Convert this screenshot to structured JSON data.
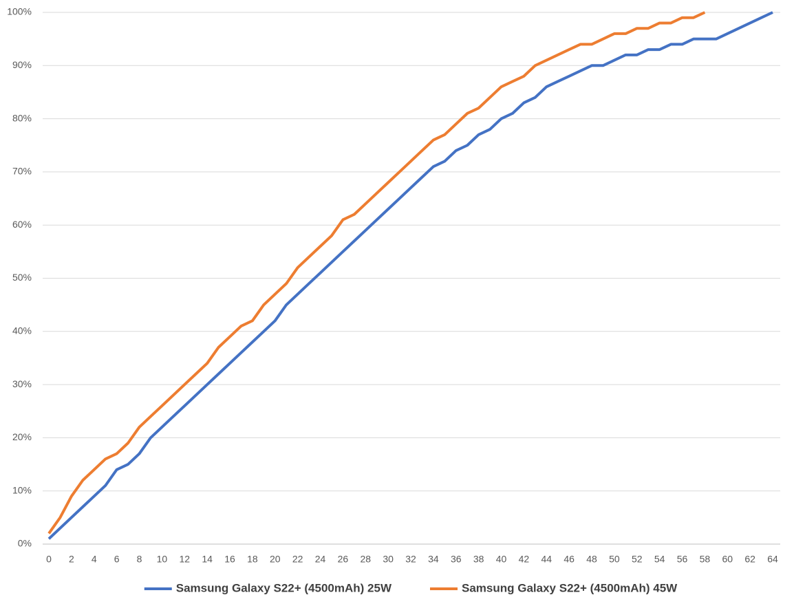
{
  "chart_data": {
    "type": "line",
    "x": [
      0,
      1,
      2,
      3,
      4,
      5,
      6,
      7,
      8,
      9,
      10,
      11,
      12,
      13,
      14,
      15,
      16,
      17,
      18,
      19,
      20,
      21,
      22,
      23,
      24,
      25,
      26,
      27,
      28,
      29,
      30,
      31,
      32,
      33,
      34,
      35,
      36,
      37,
      38,
      39,
      40,
      41,
      42,
      43,
      44,
      45,
      46,
      47,
      48,
      49,
      50,
      51,
      52,
      53,
      54,
      55,
      56,
      57,
      58,
      59,
      60,
      61,
      62,
      63,
      64
    ],
    "series": [
      {
        "name": "Samsung Galaxy S22+ (4500mAh) 25W",
        "color": "#4472c4",
        "values": [
          1,
          3,
          5,
          7,
          9,
          11,
          14,
          15,
          17,
          20,
          22,
          24,
          26,
          28,
          30,
          32,
          34,
          36,
          38,
          40,
          42,
          45,
          47,
          49,
          51,
          53,
          55,
          57,
          59,
          61,
          63,
          65,
          67,
          69,
          71,
          72,
          74,
          75,
          77,
          78,
          80,
          81,
          83,
          84,
          86,
          87,
          88,
          89,
          90,
          90,
          91,
          92,
          92,
          93,
          93,
          94,
          94,
          95,
          95,
          95,
          96,
          97,
          98,
          99,
          100
        ]
      },
      {
        "name": "Samsung Galaxy S22+ (4500mAh) 45W",
        "color": "#ed7d31",
        "values": [
          2,
          5,
          9,
          12,
          14,
          16,
          17,
          19,
          22,
          24,
          26,
          28,
          30,
          32,
          34,
          37,
          39,
          41,
          42,
          45,
          47,
          49,
          52,
          54,
          56,
          58,
          61,
          62,
          64,
          66,
          68,
          70,
          72,
          74,
          76,
          77,
          79,
          81,
          82,
          84,
          86,
          87,
          88,
          90,
          91,
          92,
          93,
          94,
          94,
          95,
          96,
          96,
          97,
          97,
          98,
          98,
          99,
          99,
          100,
          null,
          null,
          null,
          null,
          null,
          null
        ]
      }
    ],
    "xlim": [
      0,
      64
    ],
    "xticks": [
      0,
      2,
      4,
      6,
      8,
      10,
      12,
      14,
      16,
      18,
      20,
      22,
      24,
      26,
      28,
      30,
      32,
      34,
      36,
      38,
      40,
      42,
      44,
      46,
      48,
      50,
      52,
      54,
      56,
      58,
      60,
      62,
      64
    ],
    "ylim": [
      0,
      100
    ],
    "yticks": [
      {
        "value": 0,
        "label": "0%"
      },
      {
        "value": 10,
        "label": "10%"
      },
      {
        "value": 20,
        "label": "20%"
      },
      {
        "value": 30,
        "label": "30%"
      },
      {
        "value": 40,
        "label": "40%"
      },
      {
        "value": 50,
        "label": "50%"
      },
      {
        "value": 60,
        "label": "60%"
      },
      {
        "value": 70,
        "label": "70%"
      },
      {
        "value": 80,
        "label": "80%"
      },
      {
        "value": 90,
        "label": "90%"
      },
      {
        "value": 100,
        "label": "100%"
      }
    ],
    "grid": true,
    "legend": "bottom"
  }
}
